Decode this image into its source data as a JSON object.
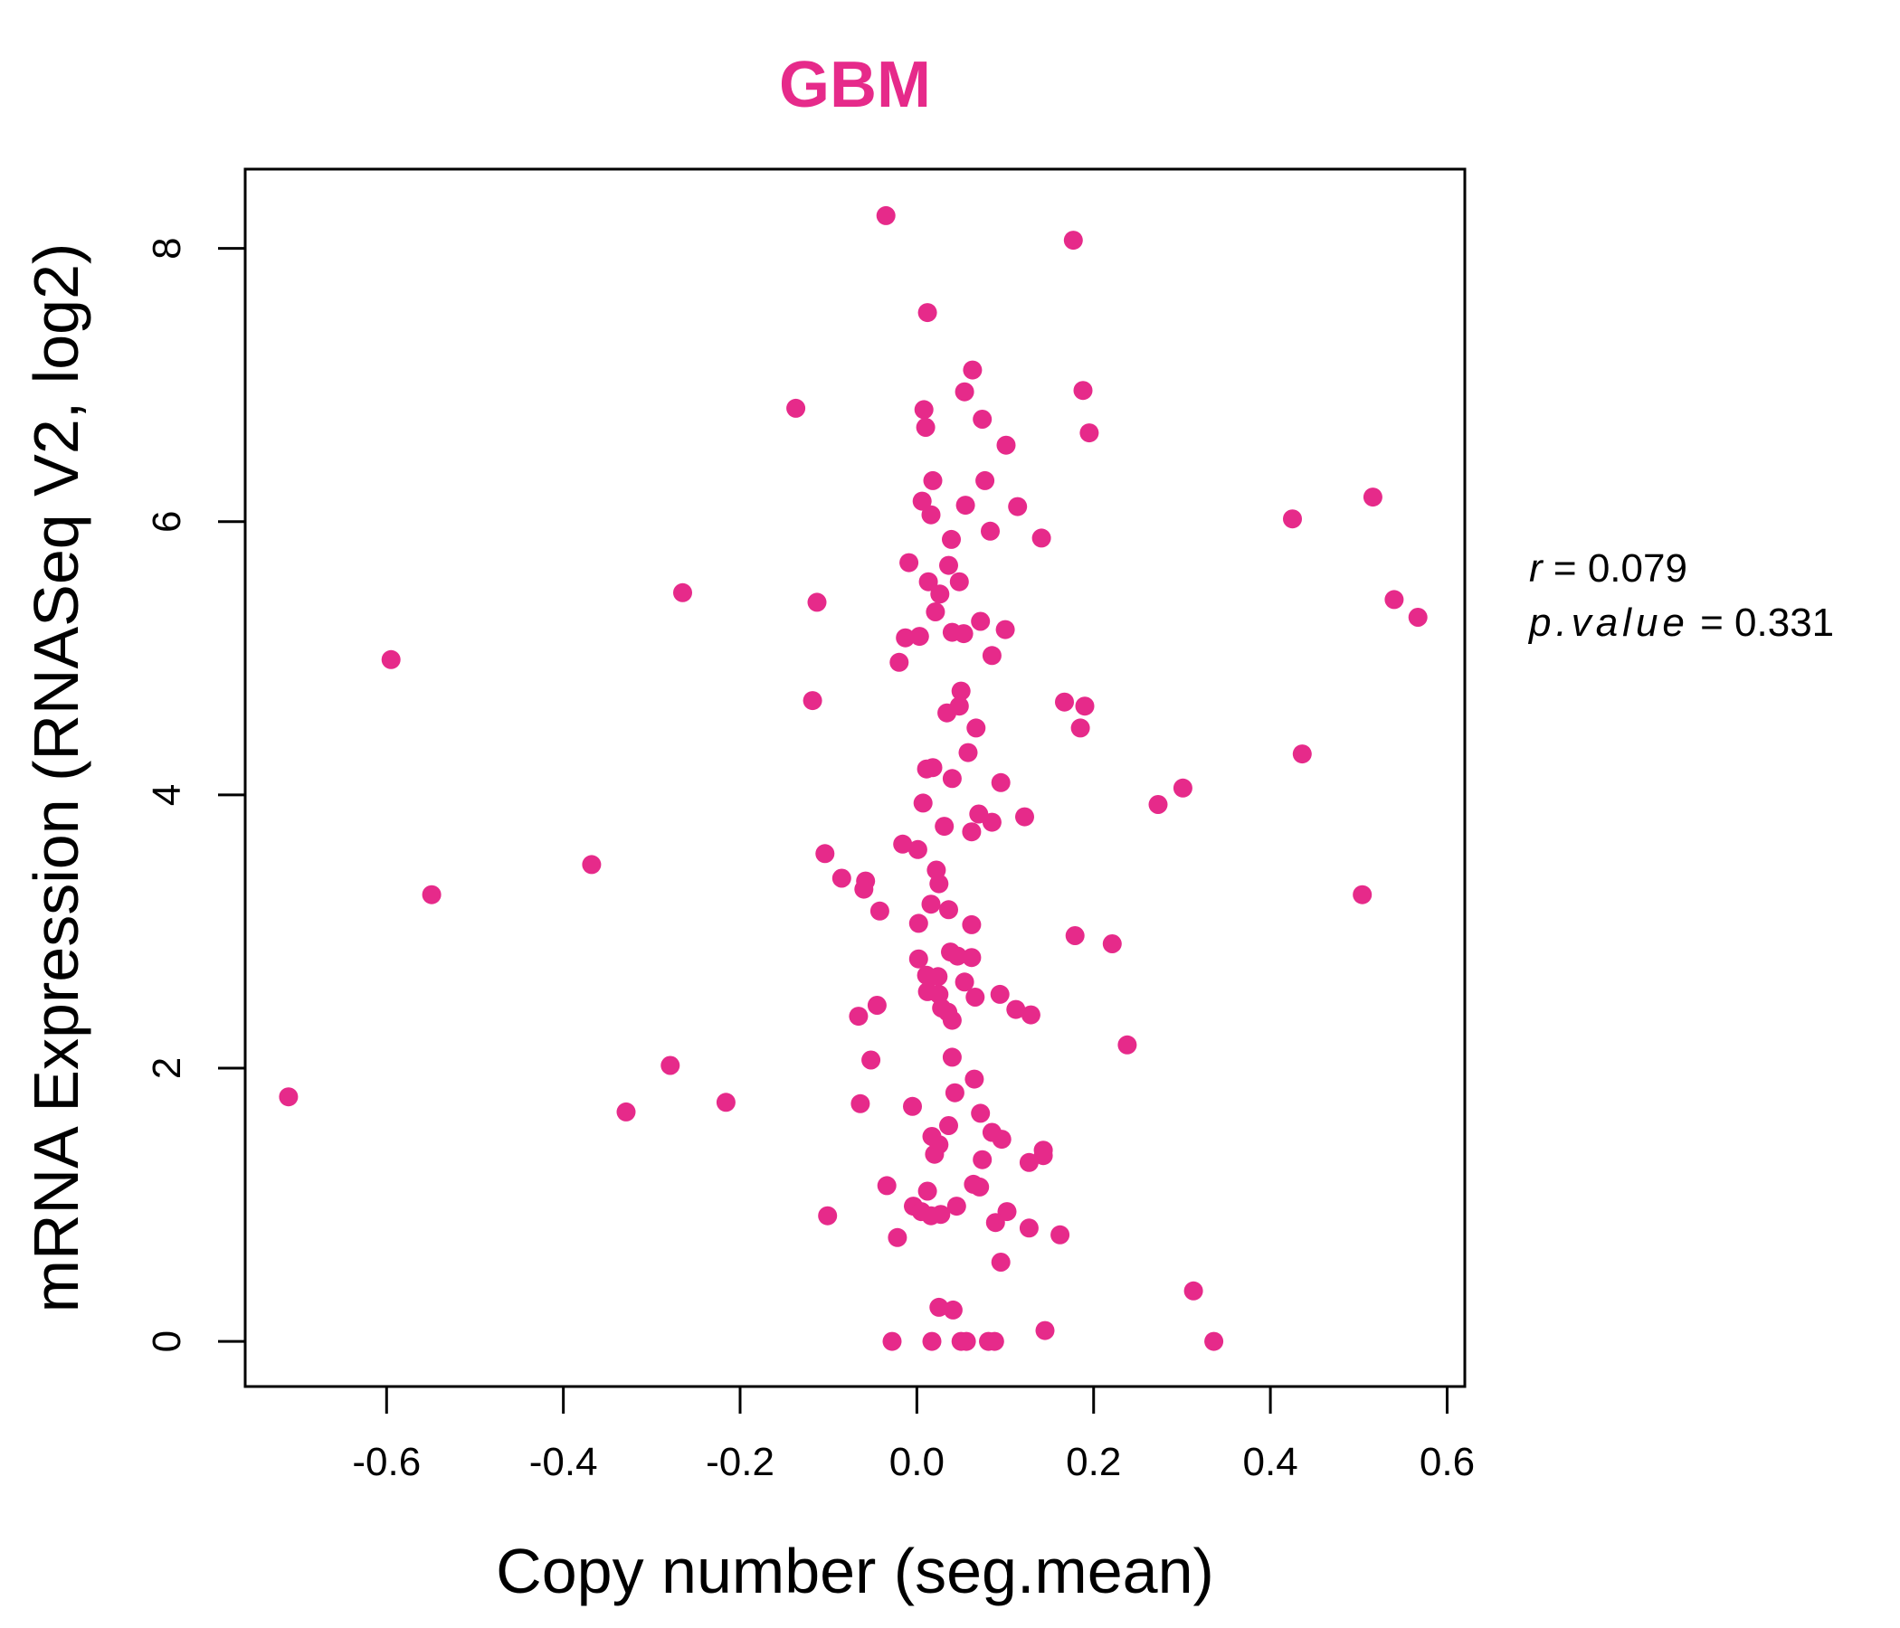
{
  "chart_data": {
    "type": "scatter",
    "title": "GBM",
    "xlabel": "Copy number (seg.mean)",
    "ylabel": "mRNA Expression (RNASeq V2, log2)",
    "xlim": [
      -0.76,
      0.62
    ],
    "ylim": [
      -0.33,
      8.58
    ],
    "x_ticks": [
      -0.6,
      -0.4,
      -0.2,
      0.0,
      0.2,
      0.4,
      0.6
    ],
    "x_tick_labels": [
      "-0.6",
      "-0.4",
      "-0.2",
      "0.0",
      "0.2",
      "0.4",
      "0.6"
    ],
    "y_ticks": [
      0,
      2,
      4,
      6,
      8
    ],
    "y_tick_labels": [
      "0",
      "2",
      "4",
      "6",
      "8"
    ],
    "grid": false,
    "legend": "none",
    "point_color": "#E62A8A",
    "annotation": {
      "r_label": "r",
      "r_value": "0.079",
      "p_label": "p.value",
      "p_value": "0.331"
    },
    "series": [
      {
        "points": [
          [
            -0.035,
            8.24
          ],
          [
            0.177,
            8.06
          ],
          [
            0.012,
            7.53
          ],
          [
            0.063,
            7.11
          ],
          [
            0.188,
            6.96
          ],
          [
            0.054,
            6.95
          ],
          [
            -0.137,
            6.83
          ],
          [
            0.008,
            6.82
          ],
          [
            0.074,
            6.75
          ],
          [
            0.01,
            6.69
          ],
          [
            0.195,
            6.65
          ],
          [
            0.101,
            6.56
          ],
          [
            0.018,
            6.3
          ],
          [
            0.077,
            6.3
          ],
          [
            0.516,
            6.18
          ],
          [
            0.006,
            6.15
          ],
          [
            0.055,
            6.12
          ],
          [
            0.114,
            6.11
          ],
          [
            0.016,
            6.05
          ],
          [
            0.425,
            6.02
          ],
          [
            0.083,
            5.93
          ],
          [
            0.141,
            5.88
          ],
          [
            0.039,
            5.87
          ],
          [
            -0.009,
            5.7
          ],
          [
            0.036,
            5.68
          ],
          [
            0.013,
            5.56
          ],
          [
            0.048,
            5.56
          ],
          [
            0.026,
            5.47
          ],
          [
            -0.265,
            5.48
          ],
          [
            0.54,
            5.43
          ],
          [
            -0.113,
            5.41
          ],
          [
            0.021,
            5.34
          ],
          [
            0.567,
            5.3
          ],
          [
            0.072,
            5.27
          ],
          [
            0.1,
            5.21
          ],
          [
            0.04,
            5.19
          ],
          [
            0.053,
            5.18
          ],
          [
            -0.013,
            5.15
          ],
          [
            0.003,
            5.16
          ],
          [
            0.085,
            5.02
          ],
          [
            -0.02,
            4.97
          ],
          [
            -0.595,
            4.99
          ],
          [
            0.05,
            4.76
          ],
          [
            -0.118,
            4.69
          ],
          [
            0.167,
            4.68
          ],
          [
            0.19,
            4.65
          ],
          [
            0.048,
            4.65
          ],
          [
            0.034,
            4.6
          ],
          [
            0.067,
            4.49
          ],
          [
            0.185,
            4.49
          ],
          [
            0.058,
            4.31
          ],
          [
            0.436,
            4.3
          ],
          [
            0.011,
            4.19
          ],
          [
            0.018,
            4.2
          ],
          [
            0.04,
            4.12
          ],
          [
            0.095,
            4.09
          ],
          [
            0.301,
            4.05
          ],
          [
            0.007,
            3.94
          ],
          [
            0.273,
            3.93
          ],
          [
            0.07,
            3.86
          ],
          [
            0.122,
            3.84
          ],
          [
            0.085,
            3.8
          ],
          [
            0.031,
            3.77
          ],
          [
            0.062,
            3.73
          ],
          [
            -0.016,
            3.64
          ],
          [
            0.001,
            3.6
          ],
          [
            -0.104,
            3.57
          ],
          [
            -0.368,
            3.49
          ],
          [
            0.022,
            3.45
          ],
          [
            -0.085,
            3.39
          ],
          [
            -0.058,
            3.37
          ],
          [
            0.025,
            3.35
          ],
          [
            -0.06,
            3.31
          ],
          [
            -0.549,
            3.27
          ],
          [
            0.504,
            3.27
          ],
          [
            0.016,
            3.2
          ],
          [
            0.036,
            3.16
          ],
          [
            -0.042,
            3.15
          ],
          [
            0.002,
            3.06
          ],
          [
            0.062,
            3.05
          ],
          [
            0.179,
            2.97
          ],
          [
            0.221,
            2.91
          ],
          [
            0.038,
            2.85
          ],
          [
            0.046,
            2.82
          ],
          [
            0.062,
            2.81
          ],
          [
            0.002,
            2.8
          ],
          [
            0.011,
            2.68
          ],
          [
            0.024,
            2.67
          ],
          [
            0.054,
            2.63
          ],
          [
            0.012,
            2.56
          ],
          [
            0.025,
            2.54
          ],
          [
            0.094,
            2.54
          ],
          [
            0.066,
            2.52
          ],
          [
            -0.045,
            2.46
          ],
          [
            0.028,
            2.44
          ],
          [
            0.112,
            2.43
          ],
          [
            0.035,
            2.41
          ],
          [
            0.129,
            2.39
          ],
          [
            -0.066,
            2.38
          ],
          [
            0.04,
            2.35
          ],
          [
            0.238,
            2.17
          ],
          [
            0.04,
            2.08
          ],
          [
            -0.052,
            2.06
          ],
          [
            -0.279,
            2.02
          ],
          [
            0.065,
            1.92
          ],
          [
            0.043,
            1.82
          ],
          [
            -0.711,
            1.79
          ],
          [
            -0.216,
            1.75
          ],
          [
            -0.064,
            1.74
          ],
          [
            -0.005,
            1.72
          ],
          [
            -0.329,
            1.68
          ],
          [
            0.072,
            1.67
          ],
          [
            0.036,
            1.58
          ],
          [
            0.085,
            1.53
          ],
          [
            0.017,
            1.5
          ],
          [
            0.096,
            1.48
          ],
          [
            0.025,
            1.44
          ],
          [
            0.143,
            1.4
          ],
          [
            0.02,
            1.37
          ],
          [
            0.143,
            1.36
          ],
          [
            0.127,
            1.31
          ],
          [
            0.074,
            1.33
          ],
          [
            0.064,
            1.15
          ],
          [
            0.071,
            1.13
          ],
          [
            -0.034,
            1.14
          ],
          [
            0.012,
            1.1
          ],
          [
            -0.004,
            0.99
          ],
          [
            0.045,
            0.99
          ],
          [
            0.005,
            0.95
          ],
          [
            0.027,
            0.93
          ],
          [
            0.016,
            0.92
          ],
          [
            -0.101,
            0.92
          ],
          [
            0.102,
            0.95
          ],
          [
            0.089,
            0.87
          ],
          [
            0.127,
            0.83
          ],
          [
            0.162,
            0.78
          ],
          [
            -0.022,
            0.76
          ],
          [
            0.095,
            0.58
          ],
          [
            0.313,
            0.37
          ],
          [
            0.025,
            0.25
          ],
          [
            0.041,
            0.23
          ],
          [
            0.145,
            0.08
          ],
          [
            -0.028,
            0.0
          ],
          [
            0.017,
            0.0
          ],
          [
            0.05,
            0.0
          ],
          [
            0.056,
            0.0
          ],
          [
            0.081,
            0.0
          ],
          [
            0.088,
            0.0
          ],
          [
            0.336,
            0.0
          ]
        ]
      }
    ]
  }
}
